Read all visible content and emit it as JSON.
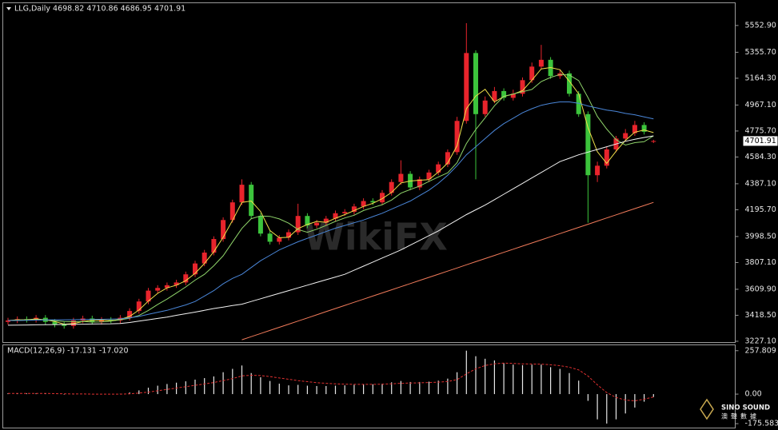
{
  "chart_data": [
    {
      "type": "candlestick",
      "title": "LLG,Daily  4698.82 4710.86 4686.95 4701.91",
      "watermark": "WikiFX",
      "up_color": "#e8242c",
      "down_color": "#3cc43c",
      "open": [
        3370,
        3380,
        3390,
        3385,
        3400,
        3370,
        3350,
        3340,
        3380,
        3395,
        3370,
        3385,
        3380,
        3400,
        3450,
        3520,
        3600,
        3620,
        3640,
        3660,
        3720,
        3800,
        3880,
        3980,
        4120,
        4250,
        4380,
        4150,
        4020,
        3960,
        3990,
        4030,
        4150,
        4080,
        4100,
        4130,
        4170,
        4180,
        4220,
        4260,
        4250,
        4320,
        4400,
        4460,
        4360,
        4420,
        4470,
        4530,
        4620,
        4850,
        5350,
        4900,
        5000,
        5070,
        5020,
        5050,
        5150,
        5250,
        5300,
        5180,
        5200,
        5050,
        4900,
        4450,
        4520,
        4640,
        4720,
        4760,
        4820,
        4698.82
      ],
      "high": [
        3400,
        3410,
        3410,
        3420,
        3420,
        3390,
        3370,
        3400,
        3415,
        3415,
        3405,
        3405,
        3420,
        3470,
        3540,
        3620,
        3640,
        3660,
        3680,
        3740,
        3820,
        3900,
        4000,
        4140,
        4270,
        4420,
        4400,
        4170,
        4040,
        4010,
        4050,
        4240,
        4170,
        4120,
        4150,
        4190,
        4200,
        4240,
        4280,
        4280,
        4340,
        4420,
        4560,
        4480,
        4440,
        4490,
        4550,
        4640,
        4880,
        5570,
        5370,
        5030,
        5100,
        5090,
        5080,
        5170,
        5280,
        5410,
        5320,
        5230,
        5220,
        5070,
        4920,
        4550,
        4660,
        4740,
        4790,
        4850,
        4840,
        4710.86
      ],
      "low": [
        3350,
        3360,
        3365,
        3365,
        3350,
        3330,
        3320,
        3320,
        3360,
        3350,
        3350,
        3360,
        3360,
        3380,
        3430,
        3500,
        3580,
        3600,
        3620,
        3640,
        3700,
        3780,
        3860,
        3960,
        4100,
        4230,
        4130,
        4000,
        3940,
        3940,
        3970,
        4010,
        4060,
        4060,
        4080,
        4110,
        4150,
        4160,
        4200,
        4230,
        4230,
        4300,
        4380,
        4340,
        4340,
        4400,
        4450,
        4510,
        4600,
        4830,
        4420,
        4880,
        4980,
        5000,
        5000,
        5030,
        5130,
        5230,
        5160,
        5160,
        5030,
        4880,
        4100,
        4400,
        4500,
        4620,
        4700,
        4740,
        4750,
        4686.95
      ],
      "close": [
        3380,
        3390,
        3385,
        3400,
        3370,
        3350,
        3340,
        3380,
        3395,
        3370,
        3385,
        3380,
        3400,
        3450,
        3520,
        3600,
        3620,
        3640,
        3660,
        3720,
        3800,
        3880,
        3980,
        4120,
        4250,
        4380,
        4150,
        4020,
        3960,
        3990,
        4030,
        4150,
        4080,
        4100,
        4130,
        4170,
        4180,
        4220,
        4260,
        4250,
        4320,
        4400,
        4460,
        4360,
        4420,
        4470,
        4530,
        4620,
        4850,
        5350,
        4900,
        5000,
        5070,
        5020,
        5050,
        5150,
        5250,
        5300,
        5180,
        5200,
        5050,
        4900,
        4450,
        4520,
        4640,
        4720,
        4760,
        4820,
        4770,
        4701.91
      ],
      "series": [
        {
          "color": "#f0e04a",
          "values": [
            3380,
            3385,
            3385,
            3392,
            3385,
            3373,
            3353,
            3357,
            3372,
            3382,
            3383,
            3378,
            3388,
            3410,
            3457,
            3523,
            3580,
            3620,
            3640,
            3673,
            3727,
            3800,
            3887,
            3993,
            4117,
            4250,
            4260,
            4183,
            4043,
            3990,
            3993,
            4057,
            4087,
            4110,
            4103,
            4133,
            4160,
            4190,
            4220,
            4243,
            4277,
            4323,
            4393,
            4407,
            4413,
            4417,
            4473,
            4540,
            4667,
            4940,
            5033,
            5083,
            4990,
            5030,
            5047,
            5073,
            5150,
            5233,
            5243,
            5227,
            5143,
            5050,
            4800,
            4623,
            4537,
            4627,
            4707,
            4767,
            4783,
            4764
          ]
        },
        {
          "color": "#8fd46a",
          "values": [
            3380,
            3382,
            3383,
            3386,
            3385,
            3379,
            3373,
            3371,
            3373,
            3368,
            3370,
            3375,
            3385,
            3397,
            3417,
            3454,
            3498,
            3538,
            3582,
            3627,
            3677,
            3720,
            3783,
            3857,
            3958,
            4058,
            4130,
            4150,
            4147,
            4128,
            4097,
            4050,
            4030,
            4052,
            4080,
            4110,
            4135,
            4155,
            4190,
            4212,
            4233,
            4267,
            4318,
            4345,
            4370,
            4405,
            4437,
            4468,
            4542,
            4683,
            4787,
            4872,
            4962,
            5032,
            5048,
            5065,
            5082,
            5140,
            5170,
            5192,
            5188,
            5147,
            5022,
            4883,
            4790,
            4712,
            4672,
            4690,
            4697,
            4740
          ]
        },
        {
          "color": "#4a86d8",
          "values": [
            3380,
            3380,
            3382,
            3383,
            3384,
            3385,
            3385,
            3386,
            3387,
            3388,
            3389,
            3390,
            3392,
            3400,
            3410,
            3425,
            3440,
            3455,
            3475,
            3495,
            3520,
            3560,
            3600,
            3650,
            3690,
            3720,
            3770,
            3820,
            3860,
            3900,
            3930,
            3960,
            3985,
            4010,
            4035,
            4060,
            4080,
            4100,
            4120,
            4145,
            4170,
            4200,
            4230,
            4260,
            4300,
            4340,
            4390,
            4450,
            4520,
            4600,
            4660,
            4720,
            4780,
            4830,
            4870,
            4910,
            4940,
            4965,
            4980,
            4990,
            4990,
            4980,
            4960,
            4945,
            4930,
            4920,
            4905,
            4895,
            4880,
            4865
          ]
        },
        {
          "color": "#f2f2f2",
          "values": [
            3345,
            3346,
            3347,
            3348,
            3349,
            3350,
            3351,
            3352,
            3353,
            3354,
            3355,
            3356,
            3358,
            3365,
            3375,
            3385,
            3395,
            3405,
            3418,
            3430,
            3442,
            3455,
            3468,
            3478,
            3490,
            3500,
            3520,
            3540,
            3560,
            3580,
            3600,
            3620,
            3640,
            3660,
            3680,
            3700,
            3720,
            3750,
            3780,
            3810,
            3840,
            3870,
            3900,
            3935,
            3970,
            4005,
            4040,
            4080,
            4120,
            4160,
            4195,
            4230,
            4270,
            4310,
            4350,
            4390,
            4430,
            4470,
            4510,
            4550,
            4575,
            4600,
            4620,
            4640,
            4660,
            4680,
            4700,
            4715,
            4728,
            4740
          ]
        },
        {
          "color": "#f07a5a",
          "values": [
            null,
            null,
            null,
            null,
            null,
            null,
            null,
            null,
            null,
            null,
            null,
            null,
            null,
            null,
            null,
            null,
            null,
            null,
            null,
            null,
            null,
            null,
            null,
            null,
            null,
            3238,
            3261,
            3284,
            3307,
            3330,
            3353,
            3376,
            3399,
            3422,
            3445,
            3468,
            3491,
            3514,
            3537,
            3560,
            3583,
            3606,
            3629,
            3652,
            3675,
            3698,
            3721,
            3744,
            3767,
            3790,
            3813,
            3836,
            3859,
            3882,
            3905,
            3928,
            3951,
            3974,
            3997,
            4020,
            4043,
            4066,
            4089,
            4112,
            4135,
            4158,
            4181,
            4204,
            4227,
            4250
          ]
        }
      ],
      "ylim": [
        3221,
        5717
      ],
      "yticks": [
        {
          "value": 5552.9,
          "label": "5552.90"
        },
        {
          "value": 5355.7,
          "label": "5355.70"
        },
        {
          "value": 5164.3,
          "label": "5164.30"
        },
        {
          "value": 4967.1,
          "label": "4967.10"
        },
        {
          "value": 4775.7,
          "label": "4775.70"
        },
        {
          "value": 4584.3,
          "label": "4584.30"
        },
        {
          "value": 4387.1,
          "label": "4387.10"
        },
        {
          "value": 4195.7,
          "label": "4195.70"
        },
        {
          "value": 3998.5,
          "label": "3998.50"
        },
        {
          "value": 3807.1,
          "label": "3807.10"
        },
        {
          "value": 3609.9,
          "label": "3609.90"
        },
        {
          "value": 3418.5,
          "label": "3418.50"
        },
        {
          "value": 3227.1,
          "label": "3227.10"
        }
      ]
    },
    {
      "type": "macd",
      "title": "MACD(12,26,9) -17.131 -17.020",
      "logo_text": "SINO SOUND",
      "logo_subtext": "澳聲數據",
      "series": [
        {
          "color": "#e8e8e8",
          "values": [
            5,
            5,
            4,
            5,
            3,
            0,
            -3,
            -2,
            0,
            -1,
            0,
            0,
            2,
            10,
            22,
            38,
            50,
            60,
            68,
            76,
            86,
            95,
            105,
            130,
            150,
            170,
            125,
            100,
            78,
            62,
            52,
            55,
            50,
            48,
            48,
            50,
            52,
            55,
            58,
            58,
            62,
            70,
            78,
            72,
            72,
            74,
            80,
            92,
            130,
            258,
            225,
            210,
            200,
            185,
            175,
            172,
            175,
            175,
            160,
            150,
            125,
            80,
            -40,
            -150,
            -175,
            -150,
            -115,
            -80,
            -45,
            -17.131
          ]
        },
        {
          "color": "#e03030",
          "values": [
            4,
            4,
            4,
            4,
            4,
            3,
            2,
            1,
            1,
            0,
            0,
            0,
            0,
            2,
            6,
            12,
            20,
            28,
            36,
            44,
            52,
            60,
            69,
            80,
            92,
            108,
            112,
            110,
            104,
            96,
            88,
            80,
            74,
            68,
            64,
            61,
            59,
            58,
            58,
            58,
            59,
            61,
            64,
            66,
            67,
            69,
            71,
            75,
            86,
            120,
            150,
            170,
            180,
            184,
            182,
            180,
            179,
            178,
            174,
            169,
            160,
            144,
            107,
            55,
            9,
            -20,
            -35,
            -40,
            -30,
            -17.02
          ]
        }
      ],
      "ylim": [
        -199,
        290
      ],
      "yticks": [
        257.809,
        {
          "value": 0,
          "label": "0.00"
        },
        -175.583
      ]
    }
  ]
}
